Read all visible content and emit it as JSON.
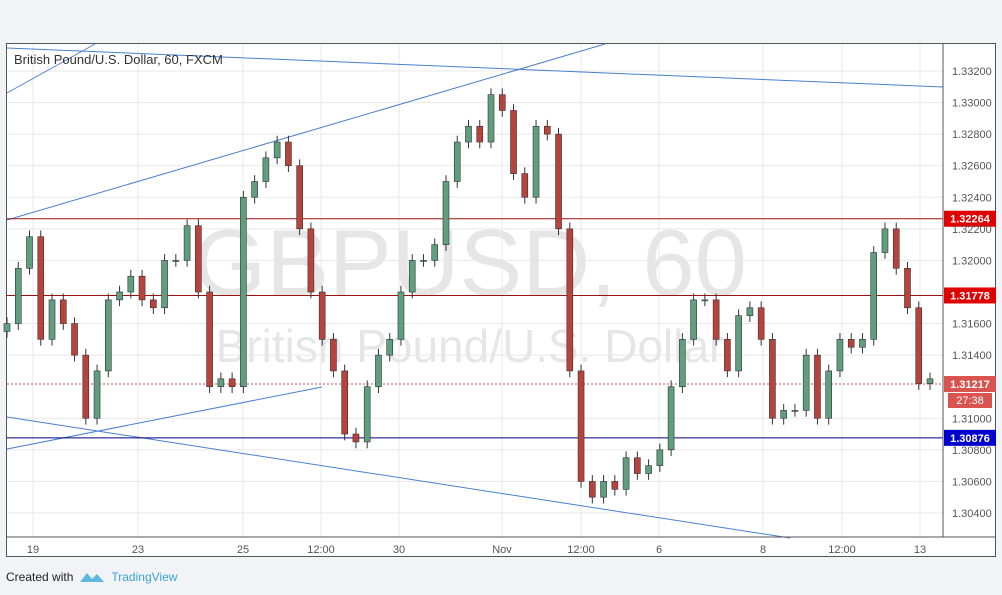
{
  "chart_data": {
    "type": "candlestick",
    "title": "British Pound/U.S. Dollar, 60, FXCM",
    "watermark": {
      "symbol": "GBPUSD, 60",
      "name": "British Pound/U.S. Dollar"
    },
    "ylim": [
      1.3024,
      1.3336
    ],
    "y_ticks": [
      "1.33200",
      "1.33000",
      "1.32800",
      "1.32600",
      "1.32400",
      "1.32200",
      "1.32000",
      "1.31600",
      "1.31400",
      "1.31000",
      "1.30800",
      "1.30600",
      "1.30400"
    ],
    "x_ticks": [
      "19",
      "23",
      "25",
      "12:00",
      "30",
      "Nov",
      "12:00",
      "6",
      "8",
      "12:00",
      "13"
    ],
    "closes": [
      1.316,
      1.3195,
      1.3215,
      1.315,
      1.3175,
      1.316,
      1.314,
      1.31,
      1.313,
      1.3175,
      1.318,
      1.319,
      1.3175,
      1.317,
      1.32,
      1.32,
      1.3222,
      1.318,
      1.312,
      1.3125,
      1.312,
      1.324,
      1.325,
      1.3265,
      1.3275,
      1.326,
      1.322,
      1.318,
      1.315,
      1.313,
      1.309,
      1.3085,
      1.312,
      1.314,
      1.315,
      1.318,
      1.32,
      1.32,
      1.321,
      1.325,
      1.3275,
      1.3285,
      1.3275,
      1.3305,
      1.3295,
      1.3255,
      1.324,
      1.3285,
      1.328,
      1.322,
      1.313,
      1.306,
      1.305,
      1.306,
      1.3055,
      1.3075,
      1.3065,
      1.307,
      1.308,
      1.312,
      1.315,
      1.3175,
      1.3175,
      1.315,
      1.313,
      1.3165,
      1.317,
      1.315,
      1.31,
      1.3105,
      1.3105,
      1.314,
      1.31,
      1.313,
      1.315,
      1.3145,
      1.315,
      1.3205,
      1.322,
      1.3195,
      1.317,
      1.3122,
      1.3125
    ],
    "levels": [
      {
        "label": "1.32264",
        "value": 1.32264,
        "color": "#e00000"
      },
      {
        "label": "1.31778",
        "value": 1.31778,
        "color": "#e00000"
      },
      {
        "label": "1.30876",
        "value": 1.30876,
        "color": "#0000cc"
      }
    ],
    "current_price": {
      "label": "1.31217",
      "value": 1.31217,
      "countdown": "27:38",
      "color": "#d9534f"
    },
    "colors": {
      "up": "#5f9e7e",
      "down": "#b8433d",
      "trendline": "#4a7fd0"
    }
  },
  "footer": {
    "created_with": "Created with",
    "brand": "TradingView"
  }
}
